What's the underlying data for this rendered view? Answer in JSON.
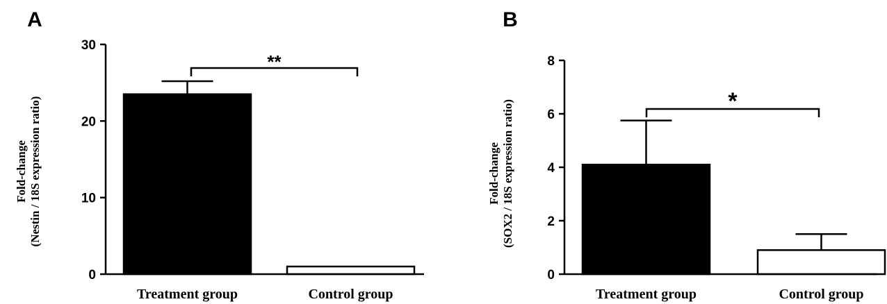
{
  "chart_data": [
    {
      "panel": "A",
      "type": "bar",
      "categories": [
        "Treatment group",
        "Control group"
      ],
      "values": [
        23.5,
        1.0
      ],
      "errors": [
        1.7,
        0
      ],
      "fills": [
        "#000000",
        "#ffffff"
      ],
      "ylabel_lines": [
        "Fold-change",
        "(Nestin / 18S expression ratio)"
      ],
      "ylim": [
        0,
        30
      ],
      "yticks": [
        0,
        10,
        20,
        30
      ],
      "significance": "**",
      "grid": false
    },
    {
      "panel": "B",
      "type": "bar",
      "categories": [
        "Treatment group",
        "Control group"
      ],
      "values": [
        4.1,
        0.9
      ],
      "errors": [
        1.65,
        0.6
      ],
      "fills": [
        "#000000",
        "#ffffff"
      ],
      "ylabel_lines": [
        "Fold-change",
        "(SOX2 / 18S expression ratio)"
      ],
      "ylim": [
        0,
        8
      ],
      "yticks": [
        0,
        2,
        4,
        6,
        8
      ],
      "significance": "*",
      "grid": false
    }
  ]
}
